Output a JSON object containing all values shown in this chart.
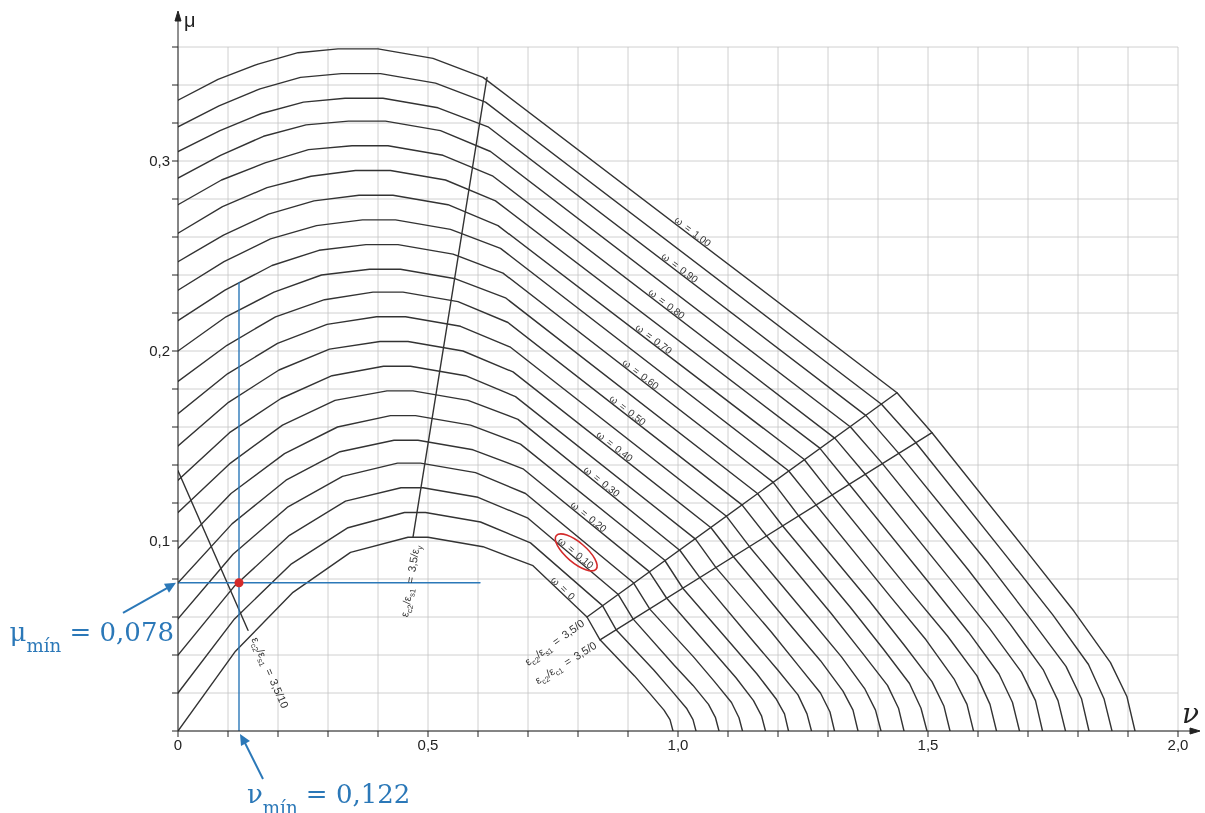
{
  "chart_data": {
    "type": "line",
    "xlabel": "ν",
    "ylabel": "μ",
    "xlim": [
      0,
      2
    ],
    "ylim": [
      0,
      0.36
    ],
    "xticks": [
      0,
      {
        "value": 0.1,
        "label": null
      },
      {
        "value": 0.2,
        "label": null
      },
      {
        "value": 0.3,
        "label": null
      },
      {
        "value": 0.4,
        "label": null
      },
      {
        "value": 0.5,
        "label": "0,5"
      },
      {
        "value": 0.6,
        "label": null
      },
      {
        "value": 0.7,
        "label": null
      },
      {
        "value": 0.8,
        "label": null
      },
      {
        "value": 0.9,
        "label": null
      },
      {
        "value": 1,
        "label": "1,0"
      },
      {
        "value": 1.1,
        "label": null
      },
      {
        "value": 1.2,
        "label": null
      },
      {
        "value": 1.3,
        "label": null
      },
      {
        "value": 1.4,
        "label": null
      },
      {
        "value": 1.5,
        "label": "1,5"
      },
      {
        "value": 1.6,
        "label": null
      },
      {
        "value": 1.7,
        "label": null
      },
      {
        "value": 1.8,
        "label": null
      },
      {
        "value": 1.9,
        "label": null
      },
      {
        "value": 2,
        "label": "2,0"
      }
    ],
    "yticks": [
      {
        "value": 0,
        "label": null
      },
      {
        "value": 0.02,
        "label": null
      },
      {
        "value": 0.04,
        "label": null
      },
      {
        "value": 0.06,
        "label": null
      },
      {
        "value": 0.08,
        "label": null
      },
      {
        "value": 0.1,
        "label": "0,1"
      },
      {
        "value": 0.12,
        "label": null
      },
      {
        "value": 0.14,
        "label": null
      },
      {
        "value": 0.16,
        "label": null
      },
      {
        "value": 0.18,
        "label": null
      },
      {
        "value": 0.2,
        "label": "0,2"
      },
      {
        "value": 0.22,
        "label": null
      },
      {
        "value": 0.24,
        "label": null
      },
      {
        "value": 0.26,
        "label": null
      },
      {
        "value": 0.28,
        "label": null
      },
      {
        "value": 0.3,
        "label": "0,3"
      },
      {
        "value": 0.32,
        "label": null
      },
      {
        "value": 0.34,
        "label": null
      },
      {
        "value": 0.36,
        "label": null
      }
    ],
    "grid": true,
    "annotations": [
      {
        "text": "μ$_{mín}$ = 0,078",
        "x": 0,
        "y": 0.078
      },
      {
        "text": "ν$_{mín}$ = 0,122",
        "x": 0.122,
        "y": 0
      }
    ],
    "series": [
      {
        "name": "ω = 0",
        "color": "#333333",
        "x": [
          0,
          0.115,
          0.23,
          0.345,
          0.46,
          0.5,
          0.61,
          0.71,
          0.818,
          0.844,
          0.913,
          0.946,
          0.972,
          0.984,
          0.99
        ],
        "values": [
          0,
          0.042,
          0.073,
          0.094,
          0.102,
          0.102,
          0.097,
          0.087,
          0.06,
          0.048,
          0.029,
          0.019,
          0.011,
          0.006,
          0
        ]
      },
      {
        "color": "#333333",
        "x": [
          0,
          0.113,
          0.227,
          0.34,
          0.453,
          0.495,
          0.605,
          0.705,
          0.849,
          0.877,
          0.952,
          0.988,
          1.017,
          1.03,
          1.036
        ],
        "values": [
          0.02,
          0.059,
          0.088,
          0.107,
          0.115,
          0.115,
          0.11,
          0.099,
          0.066,
          0.053,
          0.032,
          0.021,
          0.012,
          0.006,
          0
        ]
      },
      {
        "name": "ω = 0.10",
        "color": "#333333",
        "x": [
          0,
          0.112,
          0.223,
          0.335,
          0.446,
          0.49,
          0.6,
          0.7,
          0.88,
          0.91,
          0.991,
          1.03,
          1.061,
          1.075,
          1.082
        ],
        "values": [
          0.04,
          0.076,
          0.103,
          0.121,
          0.128,
          0.128,
          0.123,
          0.112,
          0.072,
          0.059,
          0.035,
          0.024,
          0.014,
          0.007,
          0
        ]
      },
      {
        "color": "#333333",
        "x": [
          0,
          0.11,
          0.22,
          0.329,
          0.439,
          0.485,
          0.595,
          0.695,
          0.911,
          0.944,
          1.031,
          1.073,
          1.107,
          1.122,
          1.129
        ],
        "values": [
          0.059,
          0.093,
          0.118,
          0.134,
          0.141,
          0.141,
          0.136,
          0.125,
          0.078,
          0.064,
          0.039,
          0.026,
          0.015,
          0.007,
          0
        ]
      },
      {
        "name": "ω = 0.20",
        "color": "#333333",
        "x": [
          0,
          0.108,
          0.216,
          0.324,
          0.432,
          0.48,
          0.59,
          0.69,
          0.942,
          0.977,
          1.07,
          1.116,
          1.151,
          1.167,
          1.175
        ],
        "values": [
          0.078,
          0.109,
          0.132,
          0.147,
          0.153,
          0.153,
          0.148,
          0.138,
          0.084,
          0.07,
          0.042,
          0.028,
          0.016,
          0.008,
          0
        ]
      },
      {
        "color": "#333333",
        "x": [
          0,
          0.106,
          0.213,
          0.319,
          0.425,
          0.475,
          0.585,
          0.685,
          0.973,
          1.01,
          1.109,
          1.158,
          1.196,
          1.213,
          1.221
        ],
        "values": [
          0.096,
          0.125,
          0.146,
          0.16,
          0.166,
          0.166,
          0.161,
          0.151,
          0.09,
          0.075,
          0.045,
          0.03,
          0.017,
          0.009,
          0
        ]
      },
      {
        "name": "ω = 0.30",
        "color": "#333333",
        "x": [
          0,
          0.105,
          0.209,
          0.314,
          0.418,
          0.47,
          0.58,
          0.68,
          1.004,
          1.043,
          1.148,
          1.2,
          1.24,
          1.258,
          1.267
        ],
        "values": [
          0.115,
          0.141,
          0.161,
          0.174,
          0.179,
          0.179,
          0.174,
          0.164,
          0.095,
          0.081,
          0.048,
          0.032,
          0.019,
          0.009,
          0
        ]
      },
      {
        "color": "#333333",
        "x": [
          0,
          0.103,
          0.206,
          0.308,
          0.411,
          0.465,
          0.575,
          0.675,
          1.035,
          1.076,
          1.187,
          1.242,
          1.285,
          1.304,
          1.313
        ],
        "values": [
          0.132,
          0.157,
          0.175,
          0.187,
          0.192,
          0.192,
          0.187,
          0.176,
          0.101,
          0.086,
          0.052,
          0.034,
          0.02,
          0.01,
          0
        ]
      },
      {
        "name": "ω = 0.40",
        "color": "#333333",
        "x": [
          0,
          0.101,
          0.202,
          0.303,
          0.404,
          0.46,
          0.57,
          0.67,
          1.066,
          1.11,
          1.227,
          1.285,
          1.33,
          1.35,
          1.36
        ],
        "values": [
          0.15,
          0.173,
          0.19,
          0.201,
          0.205,
          0.205,
          0.2,
          0.189,
          0.107,
          0.092,
          0.055,
          0.037,
          0.021,
          0.011,
          0
        ]
      },
      {
        "color": "#333333",
        "x": [
          0,
          0.099,
          0.199,
          0.298,
          0.397,
          0.455,
          0.565,
          0.665,
          1.097,
          1.143,
          1.267,
          1.327,
          1.374,
          1.395,
          1.406
        ],
        "values": [
          0.167,
          0.188,
          0.204,
          0.214,
          0.218,
          0.218,
          0.213,
          0.202,
          0.113,
          0.097,
          0.058,
          0.039,
          0.022,
          0.011,
          0
        ]
      },
      {
        "name": "ω = 0.50",
        "color": "#333333",
        "x": [
          0,
          0.098,
          0.195,
          0.293,
          0.39,
          0.45,
          0.56,
          0.66,
          1.128,
          1.176,
          1.306,
          1.369,
          1.419,
          1.441,
          1.452
        ],
        "values": [
          0.184,
          0.203,
          0.218,
          0.227,
          0.231,
          0.231,
          0.226,
          0.215,
          0.119,
          0.103,
          0.062,
          0.041,
          0.024,
          0.012,
          0
        ]
      },
      {
        "color": "#333333",
        "x": [
          0,
          0.096,
          0.192,
          0.287,
          0.383,
          0.445,
          0.555,
          0.655,
          1.159,
          1.209,
          1.345,
          1.411,
          1.463,
          1.486,
          1.498
        ],
        "values": [
          0.2,
          0.218,
          0.231,
          0.24,
          0.243,
          0.243,
          0.238,
          0.228,
          0.125,
          0.108,
          0.065,
          0.043,
          0.025,
          0.012,
          0
        ]
      },
      {
        "name": "ω = 0.60",
        "color": "#333333",
        "x": [
          0,
          0.094,
          0.188,
          0.282,
          0.376,
          0.44,
          0.55,
          0.65,
          1.19,
          1.242,
          1.384,
          1.453,
          1.508,
          1.532,
          1.544
        ],
        "values": [
          0.216,
          0.232,
          0.245,
          0.253,
          0.256,
          0.256,
          0.251,
          0.241,
          0.131,
          0.113,
          0.068,
          0.045,
          0.026,
          0.013,
          0
        ]
      },
      {
        "color": "#333333",
        "x": [
          0,
          0.092,
          0.185,
          0.277,
          0.369,
          0.435,
          0.545,
          0.645,
          1.221,
          1.276,
          1.424,
          1.496,
          1.553,
          1.578,
          1.591
        ],
        "values": [
          0.232,
          0.247,
          0.259,
          0.266,
          0.269,
          0.269,
          0.264,
          0.254,
          0.137,
          0.119,
          0.071,
          0.048,
          0.027,
          0.014,
          0
        ]
      },
      {
        "name": "ω = 0.70",
        "color": "#333333",
        "x": [
          0,
          0.091,
          0.181,
          0.272,
          0.362,
          0.43,
          0.54,
          0.64,
          1.252,
          1.309,
          1.463,
          1.539,
          1.598,
          1.624,
          1.637
        ],
        "values": [
          0.247,
          0.261,
          0.272,
          0.279,
          0.282,
          0.282,
          0.277,
          0.266,
          0.143,
          0.124,
          0.074,
          0.05,
          0.029,
          0.014,
          0
        ]
      },
      {
        "color": "#333333",
        "x": [
          0,
          0.089,
          0.178,
          0.266,
          0.355,
          0.425,
          0.535,
          0.635,
          1.283,
          1.342,
          1.502,
          1.581,
          1.642,
          1.669,
          1.683
        ],
        "values": [
          0.262,
          0.276,
          0.286,
          0.292,
          0.295,
          0.295,
          0.29,
          0.279,
          0.149,
          0.13,
          0.078,
          0.052,
          0.03,
          0.015,
          0
        ]
      },
      {
        "name": "ω = 0.80",
        "color": "#333333",
        "x": [
          0,
          0.087,
          0.174,
          0.261,
          0.348,
          0.42,
          0.53,
          0.63,
          1.314,
          1.375,
          1.541,
          1.623,
          1.687,
          1.715,
          1.729
        ],
        "values": [
          0.277,
          0.29,
          0.299,
          0.306,
          0.308,
          0.308,
          0.303,
          0.292,
          0.154,
          0.135,
          0.081,
          0.054,
          0.031,
          0.016,
          0
        ]
      },
      {
        "color": "#333333",
        "x": [
          0,
          0.085,
          0.171,
          0.256,
          0.341,
          0.415,
          0.525,
          0.625,
          1.345,
          1.408,
          1.58,
          1.665,
          1.731,
          1.76,
          1.775
        ],
        "values": [
          0.291,
          0.303,
          0.313,
          0.319,
          0.321,
          0.321,
          0.316,
          0.305,
          0.16,
          0.141,
          0.085,
          0.056,
          0.032,
          0.016,
          0
        ]
      },
      {
        "name": "ω = 0.90",
        "color": "#333333",
        "x": [
          0,
          0.084,
          0.167,
          0.251,
          0.334,
          0.41,
          0.52,
          0.62,
          1.376,
          1.442,
          1.621,
          1.708,
          1.776,
          1.807,
          1.822
        ],
        "values": [
          0.305,
          0.316,
          0.325,
          0.331,
          0.333,
          0.333,
          0.328,
          0.318,
          0.166,
          0.146,
          0.088,
          0.058,
          0.034,
          0.017,
          0
        ]
      },
      {
        "color": "#333333",
        "x": [
          0,
          0.082,
          0.164,
          0.245,
          0.327,
          0.405,
          0.515,
          0.615,
          1.407,
          1.475,
          1.66,
          1.75,
          1.821,
          1.852,
          1.868
        ],
        "values": [
          0.318,
          0.329,
          0.338,
          0.344,
          0.346,
          0.346,
          0.341,
          0.331,
          0.172,
          0.152,
          0.091,
          0.061,
          0.035,
          0.017,
          0
        ]
      },
      {
        "name": "ω = 1.00",
        "color": "#333333",
        "x": [
          0,
          0.08,
          0.16,
          0.24,
          0.32,
          0.4,
          0.51,
          0.61,
          1.438,
          1.508,
          1.699,
          1.792,
          1.865,
          1.898,
          1.914
        ],
        "values": [
          0.332,
          0.343,
          0.351,
          0.357,
          0.359,
          0.359,
          0.354,
          0.344,
          0.178,
          0.157,
          0.094,
          0.063,
          0.036,
          0.018,
          0
        ]
      },
      {
        "name": "ε$_{c2}$/ε$_{s1}$ = 3,5/10",
        "color": "#333333",
        "x": [
          0.14,
          0
        ],
        "values": [
          0.053,
          0.137
        ]
      },
      {
        "name": "ε$_{c2}$/ε$_{s1}$ = 3,5/ε$_{y}$",
        "color": "#333333",
        "x": [
          0.47,
          0.618
        ],
        "values": [
          0.102,
          0.344
        ]
      },
      {
        "name": "ε$_{c2}$/ε$_{s1}$ = 3,5/0",
        "color": "#333333",
        "x": [
          0.818,
          1.438
        ],
        "values": [
          0.06,
          0.178
        ]
      },
      {
        "name": "ε$_{c2}$/ε$_{c1}$ = 3,5/0",
        "color": "#333333",
        "x": [
          0.844,
          1.508
        ],
        "values": [
          0.048,
          0.157
        ]
      },
      {
        "color": "#2b78b8",
        "x": [
          0.122,
          0.122
        ],
        "values": [
          0,
          0.236
        ]
      },
      {
        "color": "#2b78b8",
        "x": [
          0,
          0.604
        ],
        "values": [
          0.078,
          0.078
        ]
      },
      {
        "type": "scatter",
        "marker": "circle",
        "color": "#d42a2a",
        "x": [
          0.122
        ],
        "values": [
          0.078
        ]
      }
    ]
  }
}
